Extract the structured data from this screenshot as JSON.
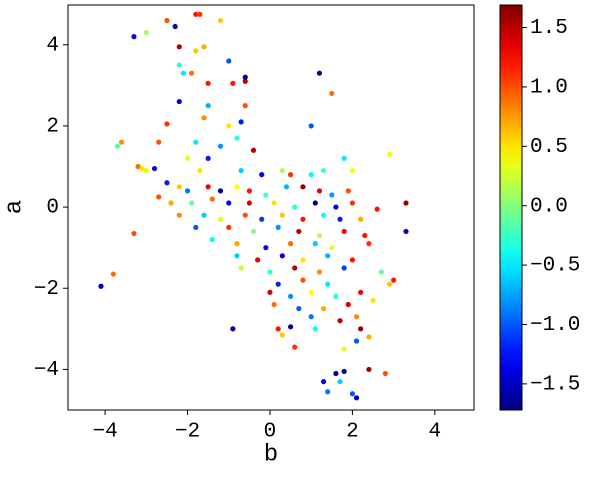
{
  "chart_data": {
    "type": "scatter",
    "colormap": "jet",
    "xlabel": "b",
    "ylabel": "a",
    "xlim": [
      -4.9,
      4.95
    ],
    "ylim": [
      -5.0,
      4.98
    ],
    "clim": [
      -1.72,
      1.69
    ],
    "xticks": [
      {
        "value": -4,
        "label": "−4"
      },
      {
        "value": -2,
        "label": "−2"
      },
      0,
      2,
      4
    ],
    "yticks": [
      {
        "value": -4,
        "label": "−4"
      },
      {
        "value": -2,
        "label": "−2"
      },
      0,
      2,
      4
    ],
    "cticks": [
      {
        "value": -1.5,
        "label": "−1.5"
      },
      {
        "value": -1.0,
        "label": "−1.0"
      },
      {
        "value": -0.5,
        "label": "−0.5"
      },
      {
        "value": 0,
        "label": "0.0"
      },
      0.5,
      {
        "value": 1.0,
        "label": "1.0"
      },
      1.5
    ],
    "x": [
      -2.5,
      -1.8,
      -1.7,
      -1.2,
      -2.3,
      -3.3,
      -3.0,
      -2.2,
      -1.6,
      -1.8,
      -1.0,
      -2.2,
      -2.1,
      -1.9,
      -0.6,
      -1.5,
      -0.9,
      -0.6,
      1.2,
      1.5,
      -2.2,
      -1.5,
      -0.6,
      -0.7,
      -2.5,
      -1.0,
      -1.6,
      1.0,
      -1.8,
      -0.8,
      -1.2,
      -0.4,
      -3.6,
      -3.7,
      -2.7,
      2.9,
      -1.5,
      -2.0,
      -1.7,
      -0.7,
      -0.2,
      0.3,
      0.5,
      1.0,
      1.3,
      1.8,
      2.0,
      -3.2,
      -3.0,
      -2.8,
      -3.1,
      -2.5,
      -2.2,
      -2.0,
      -1.5,
      -1.2,
      -0.8,
      -0.5,
      -0.1,
      0.4,
      0.8,
      1.2,
      1.5,
      1.9,
      -2.7,
      -2.4,
      -1.9,
      -1.4,
      -1.0,
      -0.5,
      0.1,
      0.6,
      1.1,
      1.6,
      2.0,
      2.6,
      3.3,
      -2.2,
      -1.6,
      -1.2,
      -0.6,
      -0.2,
      0.3,
      0.8,
      1.3,
      1.7,
      2.2,
      -1.8,
      -1.0,
      -0.4,
      0.2,
      0.7,
      1.2,
      1.8,
      2.3,
      3.3,
      -3.3,
      -1.4,
      -0.8,
      -0.1,
      0.5,
      1.1,
      1.5,
      2.4,
      -0.8,
      -0.3,
      0.3,
      0.8,
      1.4,
      2.0,
      -0.7,
      0.0,
      0.6,
      1.2,
      1.8,
      2.7,
      -3.8,
      -4.1,
      0.2,
      0.8,
      1.4,
      2.9,
      3.0,
      0.0,
      0.5,
      1.0,
      1.6,
      2.2,
      0.1,
      0.7,
      1.3,
      1.9,
      2.5,
      1.0,
      1.7,
      2.1,
      0.2,
      1.1,
      2.2,
      -0.9,
      0.3,
      0.5,
      2.4,
      2.1,
      0.6,
      1.8,
      1.6,
      1.8,
      1.3,
      1.7,
      2.4,
      2.8,
      2.0,
      2.1,
      1.4
    ],
    "values": [
      4.6,
      4.75,
      4.75,
      4.6,
      4.45,
      4.2,
      4.3,
      3.95,
      3.95,
      3.85,
      3.6,
      3.5,
      3.3,
      3.3,
      3.1,
      3.05,
      3.05,
      3.2,
      3.3,
      2.8,
      2.6,
      2.5,
      2.5,
      2.1,
      2.05,
      2.0,
      2.2,
      2.0,
      1.6,
      1.7,
      1.5,
      1.4,
      1.6,
      1.5,
      1.6,
      1.3,
      1.2,
      1.2,
      0.9,
      0.9,
      0.8,
      0.9,
      0.8,
      0.8,
      0.9,
      1.2,
      0.9,
      1.0,
      0.9,
      0.95,
      0.95,
      0.6,
      0.5,
      0.4,
      0.5,
      0.4,
      0.5,
      0.4,
      0.3,
      0.5,
      0.5,
      0.4,
      0.3,
      0.4,
      0.25,
      0.1,
      0.1,
      0.2,
      0.1,
      0.1,
      0.1,
      0.0,
      0.1,
      0.0,
      0.1,
      -0.05,
      0.1,
      -0.2,
      -0.2,
      -0.3,
      -0.2,
      -0.3,
      -0.2,
      -0.3,
      -0.2,
      -0.3,
      -0.3,
      -0.5,
      -0.5,
      -0.6,
      -0.5,
      -0.6,
      -0.7,
      -0.6,
      -0.7,
      -0.6,
      -0.65,
      -0.8,
      -0.9,
      -1.0,
      -0.9,
      -0.9,
      -1.0,
      -0.9,
      -1.2,
      -1.3,
      -1.2,
      -1.3,
      -1.2,
      -1.3,
      -1.5,
      -1.6,
      -1.5,
      -1.6,
      -1.5,
      -1.6,
      -1.65,
      -1.95,
      -1.9,
      -1.8,
      -1.9,
      -1.9,
      -1.8,
      -2.1,
      -2.2,
      -2.1,
      -2.2,
      -2.1,
      -2.4,
      -2.5,
      -2.5,
      -2.4,
      -2.3,
      -2.7,
      -2.8,
      -2.7,
      -3.0,
      -3.0,
      -3.0,
      -3.0,
      -3.15,
      -2.95,
      -3.2,
      -3.3,
      -3.45,
      -3.5,
      -4.1,
      -4.05,
      -4.3,
      -4.3,
      -4.0,
      -4.1,
      -4.6,
      -4.7,
      -4.55
    ],
    "color_values": [
      1.0,
      1.2,
      1.1,
      0.6,
      -1.6,
      -1.4,
      0.1,
      1.5,
      0.7,
      0.6,
      -1.0,
      -0.3,
      -0.5,
      0.9,
      1.5,
      1.2,
      1.2,
      -1.7,
      -1.6,
      0.9,
      -1.4,
      -0.7,
      1.0,
      -1.2,
      1.1,
      0.5,
      0.8,
      -1.0,
      -0.5,
      -0.3,
      -0.8,
      1.5,
      0.8,
      -0.2,
      1.0,
      0.4,
      -1.2,
      0.3,
      0.5,
      -0.6,
      -1.3,
      0.1,
      1.1,
      -0.4,
      -0.2,
      -0.5,
      0.4,
      0.9,
      0.3,
      -1.5,
      0.5,
      -1.2,
      0.6,
      -0.9,
      1.3,
      -1.6,
      0.4,
      1.2,
      -0.2,
      -0.7,
      1.6,
      1.3,
      -0.8,
      1.0,
      1.0,
      0.7,
      -0.1,
      0.9,
      -1.3,
      1.4,
      0.5,
      -0.3,
      -1.7,
      -1.4,
      1.1,
      1.2,
      1.6,
      0.8,
      -0.6,
      0.3,
      1.0,
      -1.1,
      0.6,
      1.2,
      -0.4,
      -1.2,
      0.7,
      -1.0,
      1.1,
      0.0,
      -0.8,
      1.5,
      0.2,
      1.3,
      1.2,
      -1.6,
      1.0,
      -0.4,
      0.7,
      -1.4,
      0.9,
      -0.6,
      0.3,
      1.1,
      -0.6,
      1.3,
      -1.3,
      0.5,
      -0.7,
      1.2,
      0.2,
      -0.3,
      1.5,
      0.8,
      -1.1,
      -0.1,
      0.9,
      -1.5,
      -1.2,
      1.0,
      -0.5,
      0.6,
      1.2,
      1.4,
      -0.8,
      0.4,
      -0.3,
      1.3,
      0.9,
      -1.0,
      0.7,
      1.4,
      0.5,
      -0.9,
      1.5,
      0.8,
      1.2,
      -0.4,
      1.6,
      -1.7,
      0.6,
      -1.6,
      0.7,
      -1.0,
      1.1,
      0.3,
      -1.6,
      -1.7,
      -1.3,
      -0.6,
      1.6,
      1.0,
      -1.0,
      -1.5,
      -0.9
    ]
  }
}
